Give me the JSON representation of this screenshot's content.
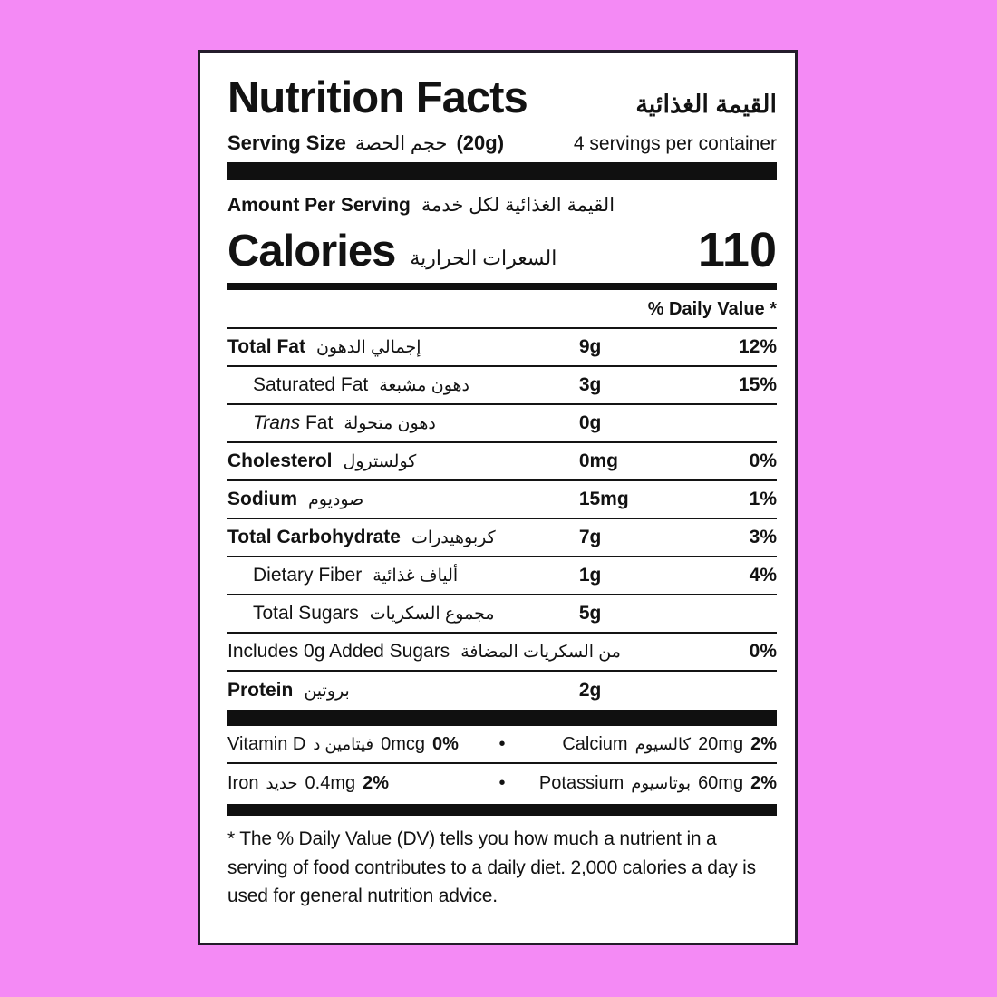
{
  "page": {
    "background_color": "#f48af5",
    "card_background": "#ffffff",
    "card_border_color": "#241c2b",
    "ink_color": "#121212"
  },
  "label": {
    "title_en": "Nutrition Facts",
    "title_ar": "القيمة الغذائية",
    "serving": {
      "label_en": "Serving Size",
      "label_ar": "حجم الحصة",
      "size": "(20g)",
      "per_container": "4 servings per container"
    },
    "amount_per_serving": {
      "en": "Amount Per Serving",
      "ar": "القيمة الغذائية لكل خدمة"
    },
    "calories": {
      "en": "Calories",
      "ar": "السعرات الحرارية",
      "value": "110"
    },
    "daily_value_header": "% Daily Value *",
    "nutrients": [
      {
        "en": "Total Fat",
        "ar": "إجمالي الدهون",
        "amount": "9g",
        "dv": "12%"
      },
      {
        "en": "Saturated Fat",
        "ar": "دهون مشبعة",
        "amount": "3g",
        "dv": "15%"
      },
      {
        "en_italic": "Trans",
        "en_rest": " Fat",
        "ar": "دهون متحولة",
        "amount": "0g",
        "dv": ""
      },
      {
        "en": "Cholesterol",
        "ar": "كولسترول",
        "amount": "0mg",
        "dv": "0%"
      },
      {
        "en": "Sodium",
        "ar": "صوديوم",
        "amount": "15mg",
        "dv": "1%"
      },
      {
        "en": "Total Carbohydrate",
        "ar": "كربوهيدرات",
        "amount": "7g",
        "dv": "3%"
      },
      {
        "en": "Dietary Fiber",
        "ar": "ألياف غذائية",
        "amount": "1g",
        "dv": "4%"
      },
      {
        "en": "Total Sugars",
        "ar": "مجموع السكريات",
        "amount": "5g",
        "dv": ""
      },
      {
        "en": "Includes 0g Added Sugars",
        "ar": "من السكريات المضافة",
        "amount": "",
        "dv": "0%"
      },
      {
        "en": "Protein",
        "ar": "بروتين",
        "amount": "2g",
        "dv": ""
      }
    ],
    "micros": [
      {
        "en": "Vitamin D",
        "ar": "فيتامين د",
        "amount": "0mcg",
        "dv": "0%"
      },
      {
        "en": "Calcium",
        "ar": "كالسيوم",
        "amount": "20mg",
        "dv": "2%"
      },
      {
        "en": "Iron",
        "ar": "حديد",
        "amount": "0.4mg",
        "dv": "2%"
      },
      {
        "en": "Potassium",
        "ar": "بوتاسيوم",
        "amount": "60mg",
        "dv": "2%"
      }
    ],
    "bullet": "•",
    "footnote": "* The % Daily Value (DV) tells you how much a nutrient in a serving of food contributes to a daily diet. 2,000 calories a day is used for general nutrition advice."
  }
}
